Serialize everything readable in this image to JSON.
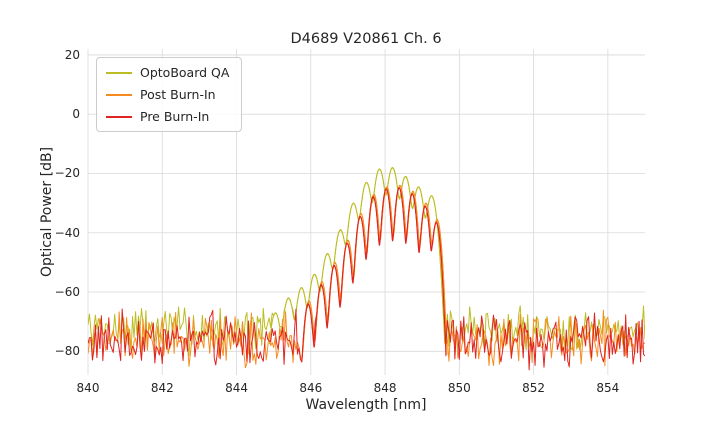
{
  "chart_data": {
    "type": "line",
    "title": "D4689 V20861 Ch. 6",
    "xlabel": "Wavelength [nm]",
    "ylabel": "Optical Power [dB]",
    "xlim": [
      840,
      855
    ],
    "ylim": [
      -88,
      22
    ],
    "grid": true,
    "grid_color": "#d9d9d9",
    "legend_position": "upper left",
    "xticks": {
      "values": [
        840,
        842,
        844,
        846,
        848,
        850,
        852,
        854
      ],
      "labels": [
        "840",
        "842",
        "844",
        "846",
        "848",
        "850",
        "852",
        "854"
      ]
    },
    "yticks": {
      "values": [
        20,
        0,
        -20,
        -40,
        -60,
        -80
      ],
      "labels": [
        "20",
        "0",
        "−20",
        "−40",
        "−60",
        "−80"
      ]
    },
    "series": [
      {
        "name": "OptoBoard QA",
        "color": "#bcbd22",
        "noise_floor_db": -72.5,
        "noise_spread_db": 5.5,
        "mode_sigma_nm": 0.105,
        "seed": 7,
        "modes": [
          [
            845.05,
            -67
          ],
          [
            845.4,
            -62
          ],
          [
            845.75,
            -58.5
          ],
          [
            846.1,
            -54
          ],
          [
            846.45,
            -47
          ],
          [
            846.8,
            -39
          ],
          [
            847.15,
            -30
          ],
          [
            847.5,
            -23
          ],
          [
            847.85,
            -18.5
          ],
          [
            848.2,
            -18
          ],
          [
            848.55,
            -21
          ],
          [
            848.9,
            -24.5
          ],
          [
            849.25,
            -27.5
          ]
        ]
      },
      {
        "name": "Post Burn-In",
        "color": "#f68c1f",
        "noise_floor_db": -76,
        "noise_spread_db": 6,
        "mode_sigma_nm": 0.082,
        "seed": 99,
        "modes": [
          [
            845.95,
            -63
          ],
          [
            846.3,
            -56.5
          ],
          [
            846.65,
            -50
          ],
          [
            847.0,
            -42.5
          ],
          [
            847.35,
            -33.5
          ],
          [
            847.7,
            -27
          ],
          [
            848.05,
            -24.5
          ],
          [
            848.4,
            -24
          ],
          [
            848.75,
            -26
          ],
          [
            849.1,
            -30
          ],
          [
            849.4,
            -35.5
          ]
        ]
      },
      {
        "name": "Pre Burn-In",
        "color": "#e02421",
        "noise_floor_db": -76.5,
        "noise_spread_db": 6.5,
        "mode_sigma_nm": 0.08,
        "seed": 1234,
        "modes": [
          [
            845.93,
            -64
          ],
          [
            846.28,
            -57.5
          ],
          [
            846.63,
            -51
          ],
          [
            846.98,
            -43.5
          ],
          [
            847.33,
            -34.5
          ],
          [
            847.68,
            -27.8
          ],
          [
            848.03,
            -25.2
          ],
          [
            848.38,
            -24.8
          ],
          [
            848.73,
            -26.8
          ],
          [
            849.08,
            -31
          ],
          [
            849.38,
            -36.5
          ]
        ]
      }
    ]
  }
}
